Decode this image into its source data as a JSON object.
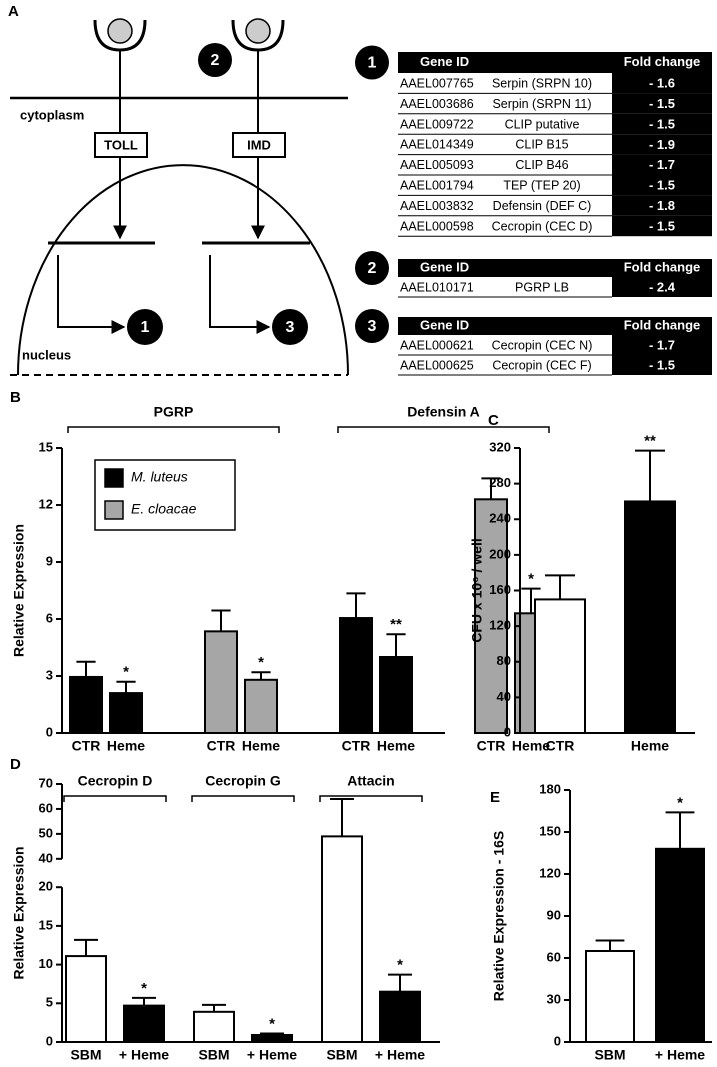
{
  "panel_a": {
    "label": "A",
    "diagram": {
      "membrane_label": "cytoplasm",
      "receptors": [
        "TOLL",
        "IMD"
      ],
      "receptor_badge": "2",
      "nucleus_label": "nucleus",
      "targets": [
        "1",
        "3"
      ]
    },
    "tables": [
      {
        "number": "1",
        "header": [
          "Gene ID",
          "Fold change"
        ],
        "rows": [
          [
            "AAEL007765",
            "Serpin (SRPN 10)",
            "- 1.6"
          ],
          [
            "AAEL003686",
            "Serpin (SRPN 11)",
            "- 1.5"
          ],
          [
            "AAEL009722",
            "CLIP putative",
            "- 1.5"
          ],
          [
            "AAEL014349",
            "CLIP B15",
            "- 1.9"
          ],
          [
            "AAEL005093",
            "CLIP B46",
            "- 1.7"
          ],
          [
            "AAEL001794",
            "TEP (TEP 20)",
            "- 1.5"
          ],
          [
            "AAEL003832",
            "Defensin (DEF C)",
            "- 1.8"
          ],
          [
            "AAEL000598",
            "Cecropin (CEC D)",
            "- 1.5"
          ]
        ]
      },
      {
        "number": "2",
        "header": [
          "Gene ID",
          "Fold change"
        ],
        "rows": [
          [
            "AAEL010171",
            "PGRP LB",
            "- 2.4"
          ]
        ]
      },
      {
        "number": "3",
        "header": [
          "Gene ID",
          "Fold change"
        ],
        "rows": [
          [
            "AAEL000621",
            "Cecropin (CEC N)",
            "- 1.7"
          ],
          [
            "AAEL000625",
            "Cecropin (CEC F)",
            "- 1.5"
          ]
        ]
      }
    ]
  },
  "chart_data": [
    {
      "type": "bar",
      "panel": "B",
      "ylabel": "Relative Expression",
      "categories": [
        "CTR",
        "Heme",
        "CTR",
        "Heme",
        "CTR",
        "Heme",
        "CTR",
        "Heme"
      ],
      "groups": [
        "PGRP",
        "Defensin A"
      ],
      "series": [
        {
          "name": "M. luteus",
          "color": "#000000",
          "values": [
            2.95,
            2.1,
            null,
            null,
            6.05,
            4.0,
            null,
            null
          ],
          "errors": [
            0.8,
            0.6,
            null,
            null,
            1.3,
            1.2,
            null,
            null
          ]
        },
        {
          "name": "E. cloacae",
          "color": "#a6a6a6",
          "values": [
            null,
            null,
            5.35,
            2.8,
            null,
            null,
            12.3,
            6.3
          ],
          "errors": [
            null,
            null,
            1.1,
            0.4,
            null,
            null,
            1.1,
            1.3
          ]
        }
      ],
      "significance": [
        null,
        "*",
        null,
        "*",
        null,
        "**",
        null,
        "*"
      ],
      "ylim": [
        0,
        15
      ],
      "yticks": [
        0,
        3,
        6,
        9,
        12,
        15
      ],
      "legend": "upper left"
    },
    {
      "type": "bar",
      "panel": "C",
      "ylabel": "CFU x 10⁶ / well",
      "categories": [
        "CTR",
        "Heme"
      ],
      "values": [
        150,
        260
      ],
      "errors": [
        27,
        57
      ],
      "colors": [
        "#ffffff",
        "#000000"
      ],
      "significance": [
        null,
        "**"
      ],
      "ylim": [
        0,
        320
      ],
      "yticks": [
        0,
        40,
        80,
        120,
        160,
        200,
        240,
        280,
        320
      ]
    },
    {
      "type": "bar",
      "panel": "D",
      "ylabel": "Relative Expression",
      "categories": [
        "SBM",
        "+ Heme",
        "SBM",
        "+ Heme",
        "SBM",
        "+ Heme"
      ],
      "groups": [
        "Cecropin D",
        "Cecropin G",
        "Attacin"
      ],
      "values": [
        11.1,
        4.7,
        3.9,
        0.9,
        49,
        6.5
      ],
      "errors": [
        2.1,
        1.0,
        0.9,
        0.2,
        15,
        2.2
      ],
      "colors": [
        "#ffffff",
        "#000000",
        "#ffffff",
        "#000000",
        "#ffffff",
        "#000000"
      ],
      "significance": [
        null,
        "*",
        null,
        "*",
        null,
        "*"
      ],
      "ylim": [
        0,
        70
      ],
      "ybreak": [
        20,
        40
      ],
      "yticks": [
        0,
        5,
        10,
        15,
        20,
        40,
        50,
        60,
        70
      ]
    },
    {
      "type": "bar",
      "panel": "E",
      "ylabel": "Relative Expression - 16S",
      "categories": [
        "SBM",
        "+ Heme"
      ],
      "values": [
        65,
        138
      ],
      "errors": [
        7.5,
        26
      ],
      "colors": [
        "#ffffff",
        "#000000"
      ],
      "significance": [
        null,
        "*"
      ],
      "ylim": [
        0,
        180
      ],
      "yticks": [
        0,
        30,
        60,
        90,
        120,
        150,
        180
      ]
    }
  ]
}
